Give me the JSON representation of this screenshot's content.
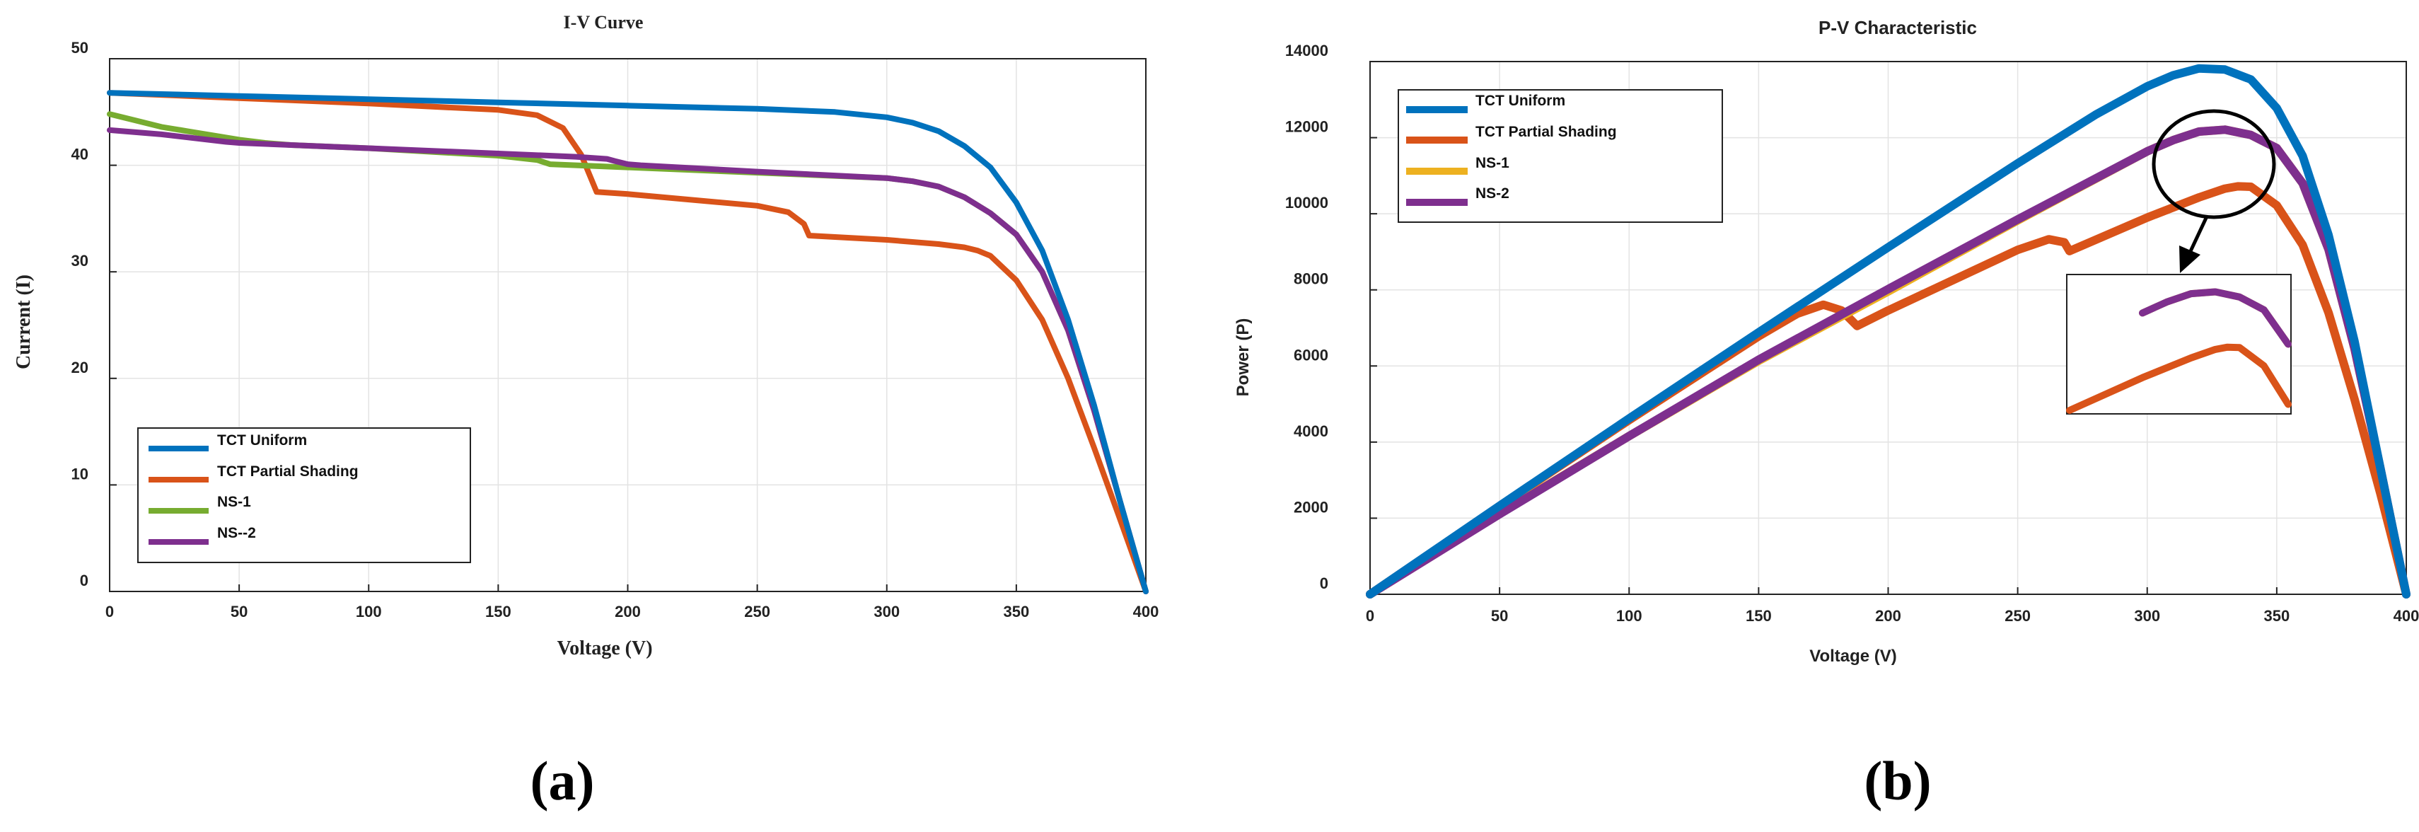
{
  "figure": {
    "caption_a": "(a)",
    "caption_b": "(b)"
  },
  "colors": {
    "tct_uniform": "#0072bd",
    "tct_partial": "#d95319",
    "ns1_iv": "#77ac30",
    "ns1_pv": "#edb120",
    "ns2": "#7e2f8e"
  },
  "chart_data": [
    {
      "type": "line",
      "title": "I-V Curve",
      "xlabel": "Voltage (V)",
      "ylabel": "Current (I)",
      "xlim": [
        0,
        400
      ],
      "ylim": [
        0,
        50
      ],
      "xticks": [
        "0",
        "50",
        "100",
        "150",
        "200",
        "250",
        "300",
        "350",
        "400"
      ],
      "yticks": [
        "0",
        "10",
        "20",
        "30",
        "40",
        "50"
      ],
      "grid": true,
      "legend_position": "bottom-left",
      "series": [
        {
          "name": "TCT Uniform",
          "color": "#0072bd",
          "x": [
            0,
            50,
            100,
            150,
            200,
            250,
            280,
            300,
            310,
            320,
            330,
            340,
            350,
            360,
            370,
            380,
            390,
            400
          ],
          "y": [
            46.8,
            46.5,
            46.2,
            45.9,
            45.6,
            45.3,
            45.0,
            44.5,
            44.0,
            43.2,
            41.8,
            39.8,
            36.5,
            32.0,
            25.5,
            17.5,
            8.5,
            0
          ]
        },
        {
          "name": "TCT Partial Shading",
          "color": "#d95319",
          "x": [
            0,
            50,
            100,
            150,
            165,
            175,
            182,
            188,
            200,
            250,
            262,
            268,
            270,
            300,
            320,
            330,
            335,
            340,
            350,
            360,
            370,
            380,
            390,
            400
          ],
          "y": [
            46.8,
            46.3,
            45.8,
            45.2,
            44.7,
            43.5,
            41.0,
            37.5,
            37.3,
            36.2,
            35.6,
            34.5,
            33.4,
            33.0,
            32.6,
            32.3,
            32.0,
            31.5,
            29.2,
            25.5,
            20.0,
            13.5,
            6.8,
            0
          ]
        },
        {
          "name": "NS-1",
          "color": "#77ac30",
          "x": [
            0,
            10,
            20,
            30,
            40,
            50,
            60,
            70,
            100,
            150,
            165,
            170,
            200,
            250,
            300,
            310,
            320,
            330,
            340,
            350,
            360,
            370,
            380,
            390,
            400
          ],
          "y": [
            44.8,
            44.2,
            43.6,
            43.2,
            42.8,
            42.4,
            42.1,
            41.9,
            41.6,
            40.9,
            40.5,
            40.1,
            39.8,
            39.3,
            38.8,
            38.5,
            38.0,
            37.0,
            35.5,
            33.5,
            30.0,
            24.5,
            17.0,
            8.5,
            0
          ]
        },
        {
          "name": "NS--2",
          "color": "#7e2f8e",
          "x": [
            0,
            20,
            45,
            50,
            100,
            150,
            180,
            192,
            195,
            200,
            205,
            250,
            300,
            310,
            320,
            330,
            340,
            350,
            360,
            370,
            380,
            390,
            400
          ],
          "y": [
            43.3,
            42.9,
            42.2,
            42.1,
            41.6,
            41.1,
            40.8,
            40.6,
            40.4,
            40.1,
            40.0,
            39.4,
            38.8,
            38.5,
            38.0,
            37.0,
            35.5,
            33.5,
            30.0,
            24.5,
            17.0,
            8.5,
            0
          ]
        }
      ]
    },
    {
      "type": "line",
      "title": "P-V Characteristic",
      "xlabel": "Voltage (V)",
      "ylabel": "Power (P)",
      "xlim": [
        0,
        400
      ],
      "ylim": [
        0,
        14000
      ],
      "xticks": [
        "0",
        "50",
        "100",
        "150",
        "200",
        "250",
        "300",
        "350",
        "400"
      ],
      "yticks": [
        "0",
        "2000",
        "4000",
        "6000",
        "8000",
        "10000",
        "12000",
        "14000"
      ],
      "grid": true,
      "legend_position": "top-left",
      "series": [
        {
          "name": "TCT Uniform",
          "color": "#0072bd",
          "x": [
            0,
            50,
            100,
            150,
            200,
            250,
            280,
            300,
            310,
            320,
            330,
            340,
            350,
            360,
            370,
            380,
            390,
            400
          ],
          "y": [
            0,
            2325,
            4620,
            6885,
            9120,
            11325,
            12600,
            13350,
            13640,
            13820,
            13790,
            13530,
            12775,
            11520,
            9440,
            6650,
            3315,
            0
          ]
        },
        {
          "name": "TCT Partial Shading",
          "color": "#d95319",
          "x": [
            0,
            50,
            100,
            150,
            165,
            175,
            182,
            188,
            200,
            250,
            262,
            268,
            270,
            300,
            320,
            330,
            335,
            340,
            350,
            360,
            370,
            380,
            390,
            400
          ],
          "y": [
            0,
            2315,
            4580,
            6780,
            7375,
            7610,
            7460,
            7050,
            7460,
            9050,
            9330,
            9250,
            9020,
            9900,
            10430,
            10660,
            10720,
            10710,
            10220,
            9180,
            7400,
            5130,
            2650,
            0
          ]
        },
        {
          "name": "NS-1",
          "color": "#edb120",
          "x": [
            0,
            50,
            100,
            150,
            200,
            250,
            300,
            310,
            320,
            330,
            340,
            350,
            360,
            370,
            380,
            390,
            400
          ],
          "y": [
            0,
            2120,
            4160,
            6135,
            7960,
            9825,
            11640,
            11935,
            12160,
            12210,
            12070,
            11725,
            10800,
            9065,
            6460,
            3315,
            0
          ]
        },
        {
          "name": "NS-2",
          "color": "#7e2f8e",
          "x": [
            0,
            50,
            100,
            150,
            200,
            250,
            300,
            310,
            320,
            330,
            340,
            350,
            360,
            370,
            380,
            390,
            400
          ],
          "y": [
            0,
            2105,
            4160,
            6165,
            8020,
            9850,
            11640,
            11935,
            12160,
            12210,
            12070,
            11725,
            10800,
            9065,
            6460,
            3315,
            0
          ]
        }
      ]
    }
  ]
}
